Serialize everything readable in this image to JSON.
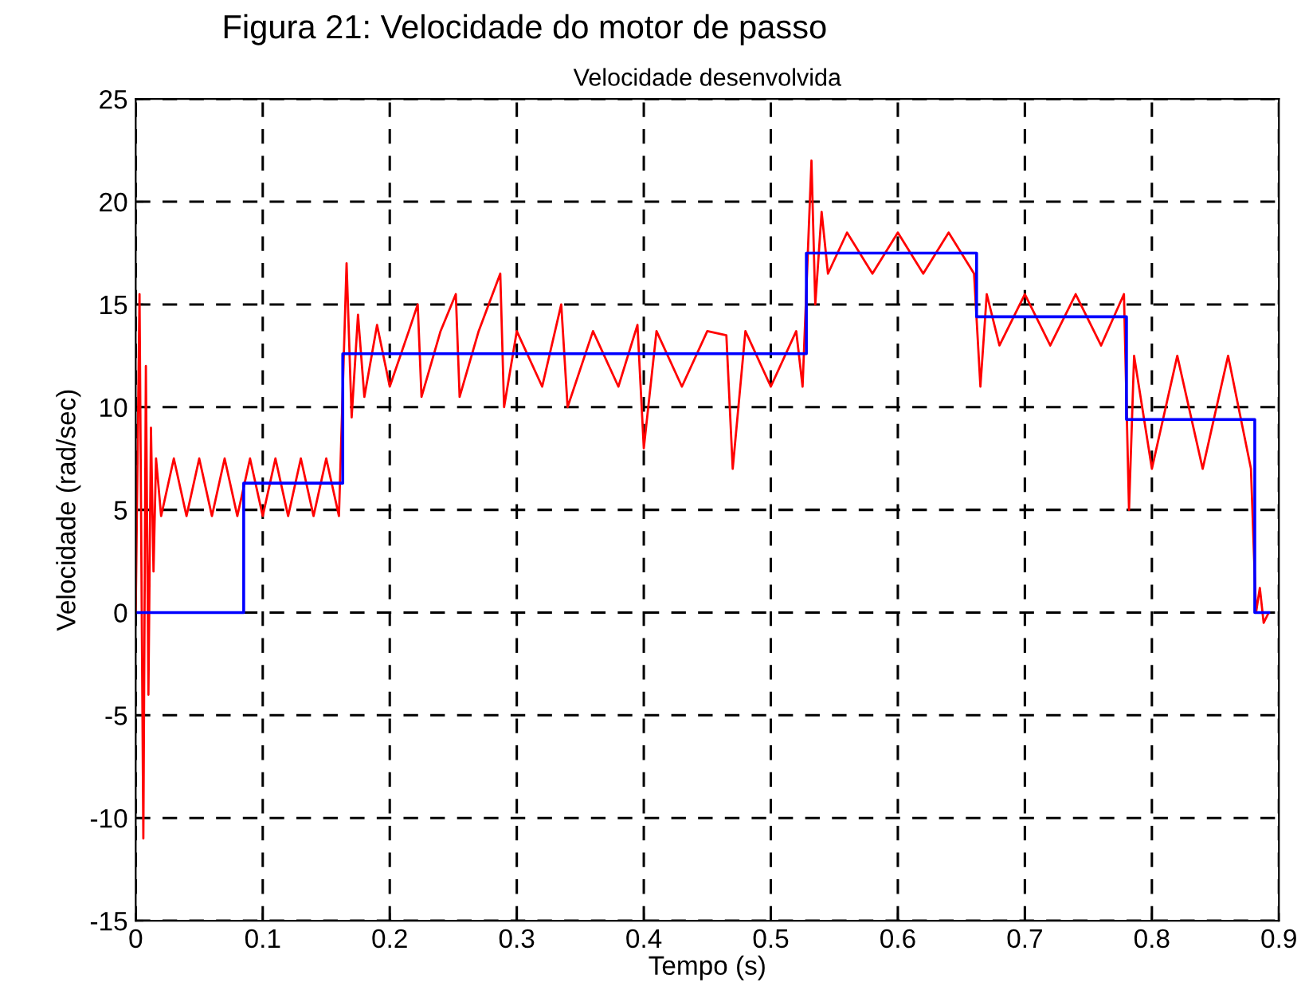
{
  "chart_data": {
    "type": "line",
    "title": "Figura 21: Velocidade do motor de passo",
    "subtitle": "Velocidade desenvolvida",
    "xlabel": "Tempo (s)",
    "ylabel": "Velocidade (rad/sec)",
    "xlim": [
      0,
      0.9
    ],
    "ylim": [
      -15,
      25
    ],
    "xticks": [
      0,
      0.1,
      0.2,
      0.3,
      0.4,
      0.5,
      0.6,
      0.7,
      0.8,
      0.9
    ],
    "yticks": [
      -15,
      -10,
      -5,
      0,
      5,
      10,
      15,
      20,
      25
    ],
    "grid": true,
    "series": [
      {
        "color": "#ff0000",
        "x": [
          0,
          0.003,
          0.006,
          0.008,
          0.01,
          0.012,
          0.014,
          0.016,
          0.02,
          0.03,
          0.04,
          0.05,
          0.06,
          0.07,
          0.08,
          0.09,
          0.1,
          0.11,
          0.12,
          0.13,
          0.14,
          0.15,
          0.16,
          0.166,
          0.17,
          0.175,
          0.18,
          0.19,
          0.2,
          0.215,
          0.222,
          0.225,
          0.24,
          0.252,
          0.255,
          0.27,
          0.287,
          0.29,
          0.3,
          0.32,
          0.335,
          0.34,
          0.36,
          0.38,
          0.395,
          0.4,
          0.41,
          0.43,
          0.45,
          0.465,
          0.47,
          0.48,
          0.5,
          0.52,
          0.525,
          0.532,
          0.535,
          0.54,
          0.545,
          0.56,
          0.58,
          0.6,
          0.62,
          0.64,
          0.66,
          0.665,
          0.67,
          0.68,
          0.7,
          0.72,
          0.74,
          0.76,
          0.778,
          0.782,
          0.786,
          0.8,
          0.82,
          0.84,
          0.86,
          0.878,
          0.882,
          0.885,
          0.888,
          0.892
        ],
        "values": [
          0,
          15.5,
          -11,
          12,
          -4,
          9,
          2,
          7.5,
          4.7,
          7.5,
          4.7,
          7.5,
          4.7,
          7.5,
          4.7,
          7.5,
          4.7,
          7.5,
          4.7,
          7.5,
          4.7,
          7.5,
          4.7,
          17,
          9.5,
          14.5,
          10.5,
          14,
          11,
          13.7,
          15,
          10.5,
          13.7,
          15.5,
          10.5,
          13.7,
          16.5,
          10,
          13.7,
          11,
          15,
          10,
          13.7,
          11,
          14,
          8,
          13.7,
          11,
          13.7,
          13.5,
          7,
          13.7,
          11,
          13.7,
          11,
          22,
          15,
          19.5,
          16.5,
          18.5,
          16.5,
          18.5,
          16.5,
          18.5,
          16.5,
          11,
          15.5,
          13,
          15.5,
          13,
          15.5,
          13,
          15.5,
          5,
          12.5,
          7,
          12.5,
          7,
          12.5,
          7,
          0,
          1.2,
          -0.5,
          0
        ]
      },
      {
        "type": "step",
        "color": "#0000ff",
        "x": [
          0,
          0.085,
          0.163,
          0.528,
          0.662,
          0.78,
          0.881,
          0.892
        ],
        "values": [
          0,
          6.3,
          12.6,
          17.5,
          14.4,
          9.4,
          0,
          0
        ]
      }
    ]
  }
}
